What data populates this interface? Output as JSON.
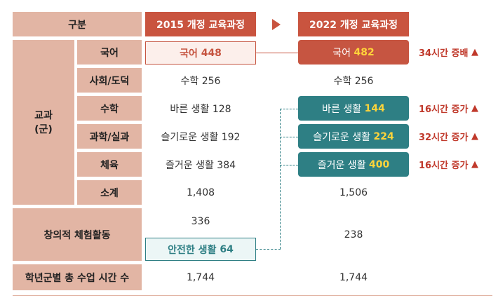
{
  "header": {
    "category": "구분",
    "curriculum_2015": "2015 개정 교육과정",
    "curriculum_2022": "2022 개정 교육과정"
  },
  "left_labels": {
    "subject_group": "교과\n(군)",
    "rows": [
      "국어",
      "사회/도덕",
      "수학",
      "과학/실과",
      "체육",
      "소계"
    ],
    "creative": "창의적 체험활동",
    "total": "학년군별 총 수업 시간 수"
  },
  "col_2015": {
    "korean_name": "국어",
    "korean_value": "448",
    "social": "수학 256",
    "math": "바른 생활 128",
    "science": "슬기로운 생활 192",
    "pe": "즐거운 생활 384",
    "subtotal": "1,408",
    "creative": "336",
    "safe_life_name": "안전한 생활",
    "safe_life_value": "64",
    "total": "1,744"
  },
  "col_2022": {
    "korean_name": "국어",
    "korean_value": "482",
    "social": "수학 256",
    "math_name": "바른 생활",
    "math_value": "144",
    "science_name": "슬기로운 생활",
    "science_value": "224",
    "pe_name": "즐거운 생활",
    "pe_value": "400",
    "subtotal": "1,506",
    "creative": "238",
    "total": "1,744"
  },
  "increases": {
    "korean": "34시간 증배",
    "math": "16시간 증가",
    "science": "32시간 증가",
    "pe": "16시간 증가",
    "arrow": "▲"
  },
  "colors": {
    "label_bg": "#e2b5a4",
    "header_red": "#c9543f",
    "box_red": "#c65541",
    "box_teal": "#2e7f84",
    "highlight_yellow": "#ffd43a",
    "increase_red": "#c0392b"
  },
  "icons": {
    "header_arrow": "triangle-right-icon"
  }
}
